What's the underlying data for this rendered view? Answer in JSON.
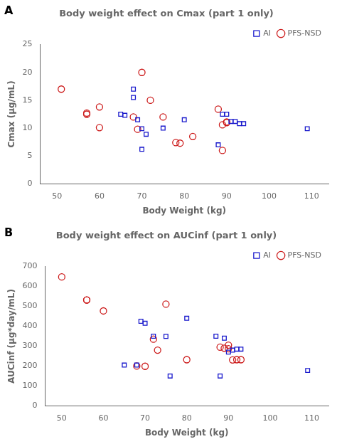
{
  "chart_data": [
    {
      "type": "scatter",
      "title": "Body weight effect on Cmax (part 1 only)",
      "x_label": "Body Weight (kg)",
      "y_label": "Cmax (μg/mL)",
      "annotations": [
        "A"
      ],
      "xlim": [
        46,
        114
      ],
      "ylim": [
        0,
        25
      ],
      "xticks": [
        50,
        60,
        70,
        80,
        90,
        100,
        110
      ],
      "yticks": [
        0,
        5,
        10,
        15,
        20,
        25
      ],
      "grid": false,
      "legend": "upper right",
      "series": [
        {
          "name": "AI",
          "color": "#1919cc",
          "marker": "square",
          "x": [
            65,
            66,
            68,
            68,
            69,
            70,
            70,
            71,
            75,
            80,
            88,
            89,
            90,
            91,
            92,
            93,
            94,
            109
          ],
          "values": [
            12.5,
            12.3,
            15.5,
            17.0,
            11.5,
            9.9,
            6.2,
            8.9,
            10.0,
            11.5,
            7.0,
            12.5,
            12.5,
            11.2,
            11.2,
            10.8,
            10.8,
            9.9
          ]
        },
        {
          "name": "PFS-NSD",
          "color": "#cc1919",
          "marker": "circle",
          "x": [
            51,
            57,
            57,
            60,
            60,
            68,
            69,
            70,
            72,
            75,
            78,
            79,
            82,
            88,
            89,
            89,
            90,
            90
          ],
          "values": [
            17.0,
            12.5,
            12.7,
            10.1,
            13.8,
            12.0,
            9.8,
            20.0,
            15.0,
            12.0,
            7.4,
            7.3,
            8.5,
            13.4,
            6.0,
            10.6,
            11.1,
            11.0
          ]
        }
      ]
    },
    {
      "type": "scatter",
      "title": "Body weight effect on AUCinf (part 1 only)",
      "x_label": "Body Weight (kg)",
      "y_label": "AUCinf (μg*day/mL)",
      "annotations": [
        "B"
      ],
      "xlim": [
        46,
        114
      ],
      "ylim": [
        0,
        700
      ],
      "xticks": [
        50,
        60,
        70,
        80,
        90,
        100,
        110
      ],
      "yticks": [
        0,
        100,
        200,
        300,
        400,
        500,
        600,
        700
      ],
      "grid": false,
      "legend": "upper right",
      "series": [
        {
          "name": "AI",
          "color": "#1919cc",
          "marker": "square",
          "x": [
            65,
            68,
            69,
            70,
            72,
            75,
            76,
            80,
            87,
            88,
            89,
            90,
            91,
            92,
            93,
            109
          ],
          "values": [
            205,
            205,
            425,
            415,
            350,
            349,
            150,
            440,
            350,
            150,
            340,
            270,
            280,
            285,
            285,
            178
          ]
        },
        {
          "name": "PFS-NSD",
          "color": "#cc1919",
          "marker": "circle",
          "x": [
            50,
            56,
            56,
            60,
            68,
            70,
            72,
            73,
            75,
            80,
            88,
            89,
            90,
            90,
            91,
            92,
            93
          ],
          "values": [
            648,
            532,
            532,
            477,
            200,
            199,
            335,
            280,
            511,
            232,
            295,
            290,
            305,
            287,
            231,
            232,
            232
          ]
        }
      ]
    }
  ]
}
